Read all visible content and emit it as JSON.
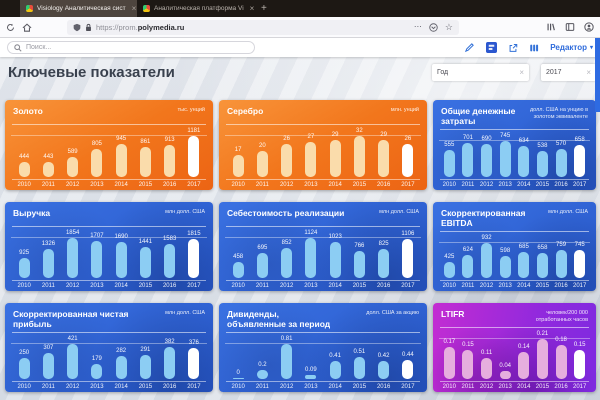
{
  "browser": {
    "tabs": [
      {
        "title": "Visiology Аналитическая сист",
        "close": "×"
      },
      {
        "title": "Аналитическая платформа Vi",
        "close": "×"
      }
    ],
    "new_tab": "+",
    "url_scheme": "https://prom.",
    "url_domain": "polymedia.ru",
    "page_actions_dots": "⋯",
    "bookmark_star": "☆"
  },
  "toolbar": {
    "search_placeholder": "Поиск...",
    "editor_label": "Редактор",
    "editor_caret": "▾"
  },
  "page": {
    "title": "Ключевые показатели",
    "filters": [
      {
        "label": "Год",
        "clear": "×"
      },
      {
        "label": "2017",
        "clear": "×"
      }
    ]
  },
  "years": [
    "2010",
    "2011",
    "2012",
    "2013",
    "2014",
    "2015",
    "2016",
    "2017"
  ],
  "cards": [
    {
      "title": "Золото",
      "unit": "тыс. унций",
      "theme": "orange",
      "values": [
        444,
        443,
        589,
        805,
        945,
        861,
        913,
        1181
      ]
    },
    {
      "title": "Серебро",
      "unit": "млн. унций",
      "theme": "orange",
      "values": [
        17,
        20,
        26,
        27,
        29,
        32,
        29,
        26
      ]
    },
    {
      "title": "Общие денежные затраты",
      "unit": "долл. США на унцию в\nзолотом эквиваленте",
      "theme": "blue",
      "values": [
        555,
        701,
        690,
        745,
        634,
        538,
        570,
        658
      ]
    },
    {
      "title": "Выручка",
      "unit": "млн долл. США",
      "theme": "blue",
      "values": [
        925,
        1326,
        1854,
        1707,
        1690,
        1441,
        1583,
        1815
      ]
    },
    {
      "title": "Себестоимость реализации",
      "unit": "млн долл. США",
      "theme": "blue",
      "values": [
        458,
        695,
        852,
        1124,
        1023,
        766,
        825,
        1106
      ]
    },
    {
      "title": "Скорректированная EBITDA",
      "unit": "млн долл. США",
      "theme": "blue",
      "values": [
        425,
        624,
        932,
        598,
        685,
        658,
        759,
        745
      ]
    },
    {
      "title": "Скорректированная чистая\nприбыль",
      "unit": "млн долл. США",
      "theme": "blue",
      "values": [
        250,
        307,
        421,
        179,
        282,
        291,
        382,
        376
      ]
    },
    {
      "title": "Дивиденды,\nобъявленные за период",
      "unit": "долл. США за акцию",
      "theme": "blue",
      "values": [
        0,
        0.2,
        0.81,
        0.09,
        0.41,
        0.51,
        0.42,
        0.44
      ]
    },
    {
      "title": "LTIFR",
      "unit": "человек/200 000\nотработанных часов",
      "theme": "purple",
      "values": [
        0.17,
        0.15,
        0.11,
        0.04,
        0.14,
        0.21,
        0.18,
        0.15
      ]
    }
  ],
  "colors": {
    "accent_blue": "#2e6bdb",
    "card_orange": "#f2761c",
    "card_blue": "#2b62d9",
    "card_purple": "#a02ad8",
    "bar_highlight": "#ffffff"
  }
}
